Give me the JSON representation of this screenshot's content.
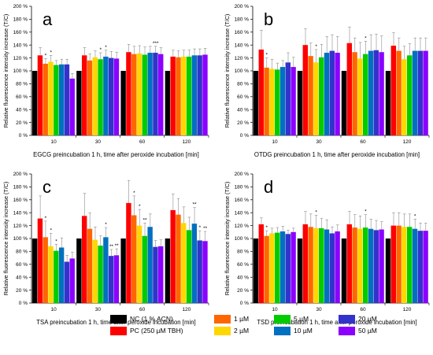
{
  "chart_data": [
    {
      "type": "bar",
      "panel": "a",
      "xlabel": "EGCG preincubation 1 h, time after peroxide incubation [min]",
      "ylabel": "Relative fluorescence intensity increase (T/C)",
      "categories": [
        "10",
        "30",
        "60",
        "120"
      ],
      "ylim": [
        0,
        200
      ],
      "yticks": [
        "0 %",
        "20 %",
        "40 %",
        "60 %",
        "80 %",
        "100 %",
        "120 %",
        "140 %",
        "160 %",
        "180 %",
        "200 %"
      ],
      "series": [
        {
          "name": "NC (1 % ACN)",
          "color": "#000000",
          "values": [
            100,
            100,
            100,
            100
          ],
          "errors": [
            0,
            0,
            0,
            0
          ]
        },
        {
          "name": "PC (250 µM TBH)",
          "color": "#ff0000",
          "values": [
            124,
            124,
            129,
            122
          ],
          "errors": [
            12,
            12,
            12,
            10
          ]
        },
        {
          "name": "1 µM",
          "color": "#ff6600",
          "values": [
            111,
            116,
            126,
            121
          ],
          "errors": [
            8,
            10,
            12,
            10
          ]
        },
        {
          "name": "2 µM",
          "color": "#ffd700",
          "values": [
            114,
            121,
            127,
            122
          ],
          "errors": [
            10,
            10,
            12,
            10
          ]
        },
        {
          "name": "5 µM",
          "color": "#00cc00",
          "values": [
            109,
            118,
            125,
            122
          ],
          "errors": [
            7,
            10,
            12,
            10
          ]
        },
        {
          "name": "10 µM",
          "color": "#0070c0",
          "values": [
            110,
            122,
            128,
            124
          ],
          "errors": [
            8,
            10,
            10,
            10
          ]
        },
        {
          "name": "20 µM",
          "color": "#3333cc",
          "values": [
            110,
            120,
            128,
            124
          ],
          "errors": [
            8,
            10,
            10,
            10
          ]
        },
        {
          "name": "50 µM",
          "color": "#8b00ff",
          "values": [
            88,
            119,
            126,
            125
          ],
          "errors": [
            8,
            10,
            10,
            10
          ]
        }
      ],
      "annotations": [
        "*",
        "*",
        "*",
        "*",
        "***"
      ]
    },
    {
      "type": "bar",
      "panel": "b",
      "xlabel": "OTDG preincubation 1 h, time after peroxide incubation [min]",
      "ylabel": "Relative fluorescence intensity increase (T/C)",
      "categories": [
        "10",
        "30",
        "60",
        "120"
      ],
      "ylim": [
        0,
        200
      ],
      "yticks": [
        "0 %",
        "20 %",
        "40 %",
        "60 %",
        "80 %",
        "100 %",
        "120 %",
        "140 %",
        "160 %",
        "180 %",
        "200 %"
      ],
      "series": [
        {
          "name": "NC (1 % ACN)",
          "color": "#000000",
          "values": [
            100,
            100,
            100,
            100
          ],
          "errors": [
            0,
            0,
            0,
            0
          ]
        },
        {
          "name": "PC (250 µM TBH)",
          "color": "#ff0000",
          "values": [
            133,
            140,
            143,
            139
          ],
          "errors": [
            30,
            25,
            25,
            20
          ]
        },
        {
          "name": "1 µM",
          "color": "#ff6600",
          "values": [
            105,
            123,
            129,
            131
          ],
          "errors": [
            15,
            20,
            22,
            20
          ]
        },
        {
          "name": "2 µM",
          "color": "#ffd700",
          "values": [
            103,
            113,
            119,
            118
          ],
          "errors": [
            15,
            20,
            25,
            20
          ]
        },
        {
          "name": "5 µM",
          "color": "#00cc00",
          "values": [
            102,
            121,
            126,
            124
          ],
          "errors": [
            10,
            20,
            20,
            18
          ]
        },
        {
          "name": "10 µM",
          "color": "#0070c0",
          "values": [
            106,
            128,
            131,
            131
          ],
          "errors": [
            10,
            25,
            25,
            20
          ]
        },
        {
          "name": "20 µM",
          "color": "#3333cc",
          "values": [
            113,
            131,
            132,
            131
          ],
          "errors": [
            15,
            25,
            25,
            20
          ]
        },
        {
          "name": "50 µM",
          "color": "#8b00ff",
          "values": [
            106,
            128,
            129,
            131
          ],
          "errors": [
            15,
            25,
            25,
            20
          ]
        }
      ],
      "annotations": [
        "*",
        "*",
        "*"
      ]
    },
    {
      "type": "bar",
      "panel": "c",
      "xlabel": "TSA preincubation 1 h, time after peroxide incubation [min]",
      "ylabel": "Relative fluorescence intensity increase (T/C)",
      "categories": [
        "10",
        "30",
        "60",
        "120"
      ],
      "ylim": [
        0,
        200
      ],
      "yticks": [
        "0 %",
        "20 %",
        "40 %",
        "60 %",
        "80 %",
        "100 %",
        "120 %",
        "140 %",
        "160 %",
        "180 %",
        "200 %"
      ],
      "series": [
        {
          "name": "NC (1 % ACN)",
          "color": "#000000",
          "values": [
            100,
            100,
            100,
            100
          ],
          "errors": [
            0,
            0,
            0,
            0
          ]
        },
        {
          "name": "PC (250 µM TBH)",
          "color": "#ff0000",
          "values": [
            131,
            135,
            155,
            144
          ],
          "errors": [
            35,
            35,
            35,
            25
          ]
        },
        {
          "name": "1 µM",
          "color": "#ff6600",
          "values": [
            102,
            115,
            136,
            137
          ],
          "errors": [
            25,
            25,
            30,
            25
          ]
        },
        {
          "name": "2 µM",
          "color": "#ffd700",
          "values": [
            88,
            98,
            120,
            124
          ],
          "errors": [
            20,
            20,
            25,
            25
          ]
        },
        {
          "name": "5 µM",
          "color": "#00cc00",
          "values": [
            81,
            89,
            104,
            113
          ],
          "errors": [
            10,
            15,
            20,
            20
          ]
        },
        {
          "name": "10 µM",
          "color": "#0070c0",
          "values": [
            86,
            102,
            118,
            123
          ],
          "errors": [
            15,
            15,
            20,
            25
          ]
        },
        {
          "name": "20 µM",
          "color": "#3333cc",
          "values": [
            64,
            73,
            87,
            97
          ],
          "errors": [
            10,
            10,
            10,
            15
          ]
        },
        {
          "name": "50 µM",
          "color": "#8b00ff",
          "values": [
            69,
            74,
            88,
            96
          ],
          "errors": [
            10,
            10,
            10,
            15
          ]
        }
      ],
      "annotations": [
        "*",
        "*",
        "*",
        "*",
        "**",
        "**",
        "*",
        "*",
        "**",
        "**",
        "*",
        "**"
      ]
    },
    {
      "type": "bar",
      "panel": "d",
      "xlabel": "TSD preincubation 1 h, time after peroxide incubation [min]",
      "ylabel": "Relative fluorescence intensity increase (T/C)",
      "categories": [
        "10",
        "30",
        "60",
        "120"
      ],
      "ylim": [
        0,
        200
      ],
      "yticks": [
        "0 %",
        "20 %",
        "40 %",
        "60 %",
        "80 %",
        "100 %",
        "120 %",
        "140 %",
        "160 %",
        "180 %",
        "200 %"
      ],
      "series": [
        {
          "name": "NC (1 % ACN)",
          "color": "#000000",
          "values": [
            100,
            100,
            100,
            100
          ],
          "errors": [
            0,
            0,
            0,
            0
          ]
        },
        {
          "name": "PC (250 µM TBH)",
          "color": "#ff0000",
          "values": [
            122,
            122,
            122,
            120
          ],
          "errors": [
            10,
            20,
            20,
            20
          ]
        },
        {
          "name": "1 µM",
          "color": "#ff6600",
          "values": [
            104,
            118,
            117,
            120
          ],
          "errors": [
            8,
            20,
            20,
            20
          ]
        },
        {
          "name": "2 µM",
          "color": "#ffd700",
          "values": [
            108,
            116,
            115,
            118
          ],
          "errors": [
            8,
            20,
            20,
            20
          ]
        },
        {
          "name": "5 µM",
          "color": "#00cc00",
          "values": [
            109,
            116,
            117,
            118
          ],
          "errors": [
            8,
            15,
            20,
            20
          ]
        },
        {
          "name": "10 µM",
          "color": "#0070c0",
          "values": [
            111,
            114,
            115,
            115
          ],
          "errors": [
            8,
            15,
            15,
            15
          ]
        },
        {
          "name": "20 µM",
          "color": "#3333cc",
          "values": [
            107,
            108,
            113,
            112
          ],
          "errors": [
            6,
            10,
            15,
            12
          ]
        },
        {
          "name": "50 µM",
          "color": "#8b00ff",
          "values": [
            110,
            111,
            114,
            112
          ],
          "errors": [
            6,
            10,
            12,
            12
          ]
        }
      ],
      "annotations": [
        "*",
        "*",
        "*",
        "*"
      ]
    }
  ],
  "legend": [
    {
      "label": "NC (1 % ACN)",
      "color": "#000000"
    },
    {
      "label": "PC (250 µM TBH)",
      "color": "#ff0000"
    },
    {
      "label": "1 µM",
      "color": "#ff6600"
    },
    {
      "label": "2 µM",
      "color": "#ffd700"
    },
    {
      "label": "5 µM",
      "color": "#00cc00"
    },
    {
      "label": "10 µM",
      "color": "#0070c0"
    },
    {
      "label": "20 µM",
      "color": "#3333cc"
    },
    {
      "label": "50 µM",
      "color": "#8b00ff"
    }
  ]
}
